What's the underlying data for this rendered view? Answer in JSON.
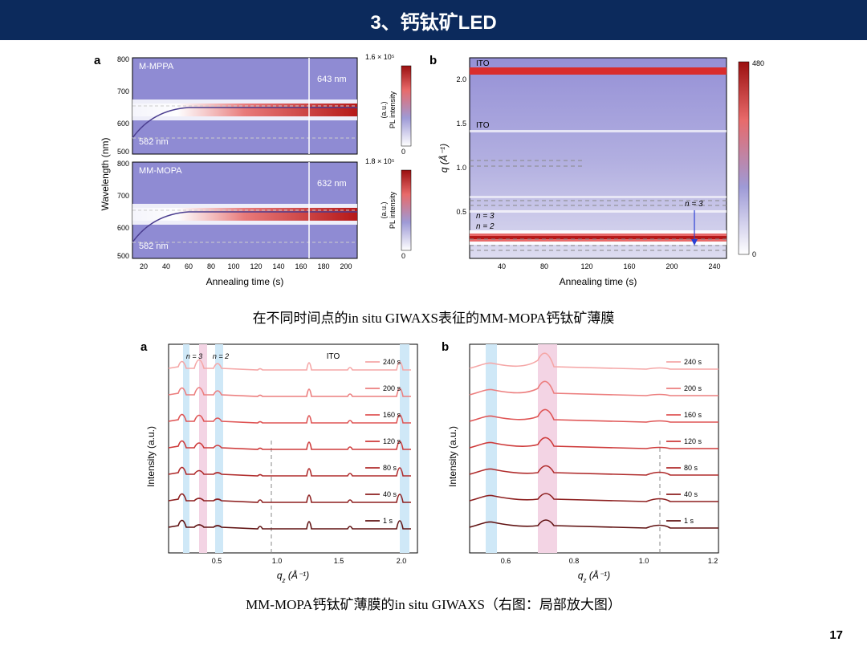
{
  "header": {
    "title": "3、钙钛矿LED"
  },
  "page_number": "17",
  "caption1": "在不同时间点的in situ GIWAXS表征的MM-MOPA钙钛矿薄膜",
  "caption2": "MM-MOPA钙钛矿薄膜的in situ GIWAXS（右图：局部放大图）",
  "fig1": {
    "panel_a": {
      "label": "a",
      "ylabel": "Wavelength (nm)",
      "xlabel": "Annealing time (s)",
      "xticks": [
        20,
        40,
        60,
        80,
        100,
        120,
        140,
        160,
        180,
        200
      ],
      "yticks": [
        500,
        600,
        700,
        800
      ],
      "top": {
        "name": "M-MPPA",
        "peak_label": "643 nm",
        "start_label": "582 nm",
        "cbar_max": "1.6 × 10⁵",
        "cbar_label": "PL intensity\n(a.u.)"
      },
      "bot": {
        "name": "MM-MOPA",
        "peak_label": "632 nm",
        "start_label": "582 nm",
        "cbar_max": "1.8 × 10⁵",
        "cbar_label": "PL intensity\n(a.u.)"
      },
      "colors": {
        "bg": "#8f8bd3",
        "hot": "#d92d2d",
        "white": "#ffffff",
        "box": "#000000"
      }
    },
    "panel_b": {
      "label": "b",
      "ylabel": "q (Å⁻¹)",
      "xlabel": "Annealing time (s)",
      "xticks": [
        40,
        80,
        120,
        160,
        200,
        240
      ],
      "yticks": [
        0.5,
        1.0,
        1.5,
        2.0
      ],
      "cbar_max": "480",
      "cbar_min": "0",
      "annotations": {
        "ito1": "ITO",
        "ito2": "ITO",
        "n2": "n = 2",
        "n3": "n = 3",
        "n3_arrow": "n = 3"
      },
      "colors": {
        "bg": "#a9a6dc",
        "hot": "#d92d2d",
        "arrow": "#2b3fd4"
      }
    }
  },
  "fig2": {
    "panel_a": {
      "label": "a",
      "ylabel": "Intensity (a.u.)",
      "xlabel": "qz (Å⁻¹)",
      "xticks": [
        0.5,
        1.0,
        1.5,
        2.0
      ],
      "legend": [
        "240 s",
        "200 s",
        "160 s",
        "120 s",
        "80 s",
        "40 s",
        "1 s"
      ],
      "colors": [
        "#f5a7a7",
        "#ec7e7e",
        "#df5555",
        "#ce3a3a",
        "#b02c2c",
        "#8d1f1f",
        "#601212"
      ],
      "annotations": {
        "n3": "n = 3",
        "n2": "n = 2",
        "ito": "ITO"
      },
      "band_colors": {
        "blue": "#cfe8f7",
        "pink": "#f3d4e4"
      }
    },
    "panel_b": {
      "label": "b",
      "ylabel": "Intensity (a.u.)",
      "xlabel": "qz (Å⁻¹)",
      "xticks": [
        0.6,
        0.8,
        1.0,
        1.2
      ],
      "legend": [
        "240 s",
        "200 s",
        "160 s",
        "120 s",
        "80 s",
        "40 s",
        "1 s"
      ],
      "colors": [
        "#f5a7a7",
        "#ec7e7e",
        "#df5555",
        "#ce3a3a",
        "#b02c2c",
        "#8d1f1f",
        "#601212"
      ],
      "band_colors": {
        "blue": "#cfe8f7",
        "pink": "#f3d4e4"
      }
    }
  }
}
